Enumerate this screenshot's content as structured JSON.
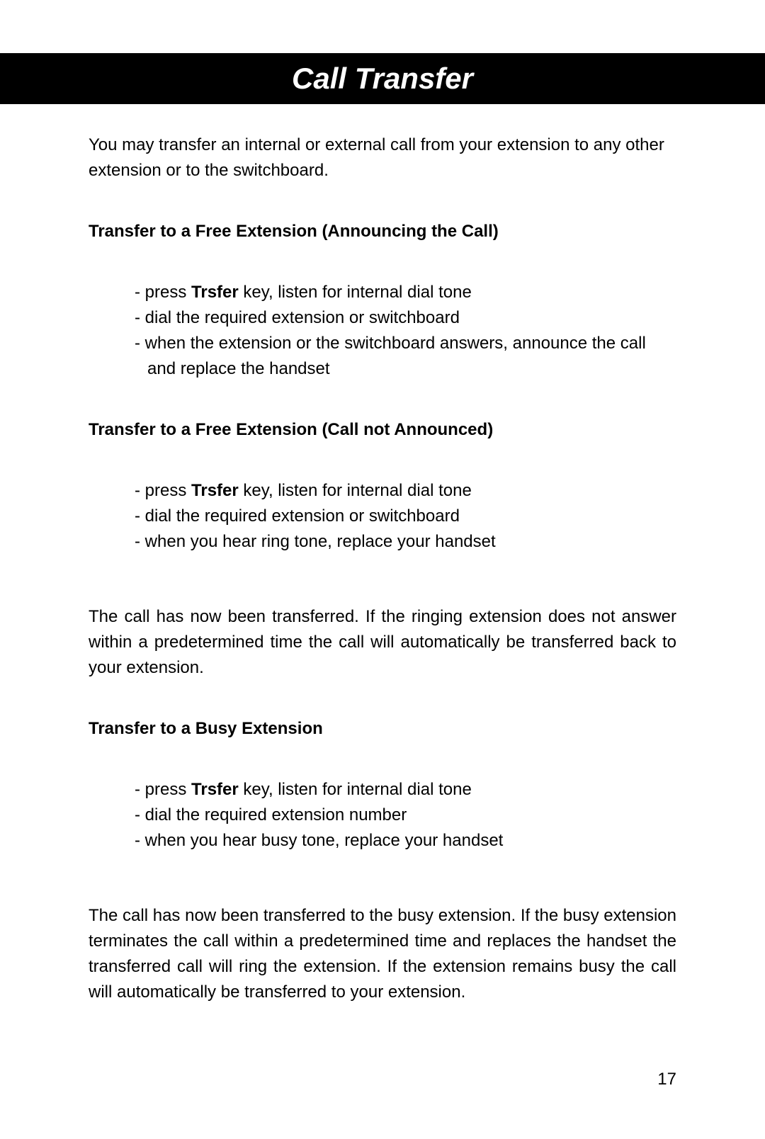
{
  "page": {
    "title": "Call Transfer",
    "intro": "You may transfer an internal or external call from your extension to any other extension or to the switchboard.",
    "page_number": "17"
  },
  "sections": [
    {
      "heading": "Transfer to a Free Extension (Announcing the Call)",
      "steps": [
        {
          "prefix": "press ",
          "bold": "Trsfer",
          "suffix": " key, listen for internal dial tone"
        },
        {
          "prefix": "dial the required extension or switchboard",
          "bold": "",
          "suffix": ""
        },
        {
          "prefix": "when the extension or the switchboard answers, announce the call and replace the handset",
          "bold": "",
          "suffix": ""
        }
      ],
      "after_text": ""
    },
    {
      "heading": "Transfer to a Free Extension (Call not Announced)",
      "steps": [
        {
          "prefix": "press ",
          "bold": "Trsfer",
          "suffix": " key, listen for internal dial tone"
        },
        {
          "prefix": "dial the required extension or switchboard",
          "bold": "",
          "suffix": ""
        },
        {
          "prefix": " when you hear ring tone, replace your handset",
          "bold": "",
          "suffix": ""
        }
      ],
      "after_text": "The call has now been transferred. If the ringing extension does not answer within a predetermined time the call will automatically be transferred back to your extension."
    },
    {
      "heading": "Transfer to a Busy Extension",
      "steps": [
        {
          "prefix": "press ",
          "bold": "Trsfer",
          "suffix": " key, listen for internal dial tone"
        },
        {
          "prefix": "dial the required extension number",
          "bold": "",
          "suffix": ""
        },
        {
          "prefix": "when you hear busy tone, replace your handset",
          "bold": "",
          "suffix": ""
        }
      ],
      "after_text": "The call has now been transferred to the busy extension. If the busy extension terminates the call within a predetermined time and replaces the handset the transferred call will ring the extension. If the extension remains busy the call will automatically be transferred to your extension."
    }
  ],
  "styles": {
    "title_bg": "#000000",
    "title_fg": "#ffffff",
    "body_fg": "#000000",
    "page_bg": "#ffffff",
    "title_fontsize": 42,
    "body_fontsize": 24,
    "heading_fontsize": 24
  }
}
